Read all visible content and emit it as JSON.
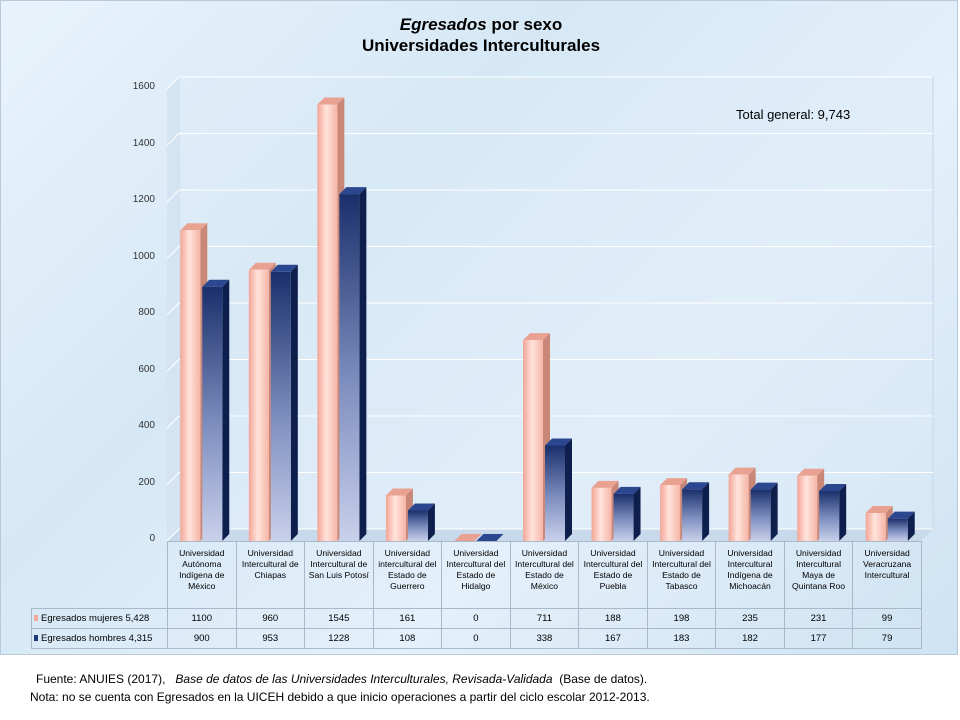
{
  "title": {
    "italic": "Egresados",
    "rest": "por sexo",
    "line2": "Universidades Interculturales"
  },
  "total_label": "Total general: 9,743",
  "footer": {
    "source_prefix": "Fuente: ANUIES (2017),",
    "source_title": "Base de datos de las Universidades Interculturales, Revisada-Validada",
    "source_suffix": "(Base de datos).",
    "note": "Nota: no se cuenta con Egresados en la UICEH debido a que inicio operaciones  a partir del ciclo escolar 2012-2013."
  },
  "colors": {
    "mujeres": "#f2a89a",
    "hombres": "#1f3a7a",
    "grid": "#ffffff"
  },
  "chart_data": {
    "type": "bar",
    "categories": [
      "Universidad Autónoma Indígena de México",
      "Universidad Intercultural de Chiapas",
      "Universidad Intercultural de San Luis Potosí",
      "Universidad intercultural del Estado de Guerrero",
      "Universidad Intercultural del Estado de Hidalgo",
      "Universidad Intercultural del Estado de México",
      "Universidad Intercultural del Estado de Puebla",
      "Universidad Intercultural del Estado de Tabasco",
      "Universidad Intercultural Indígena de Michoacán",
      "Universidad Intercultural Maya de Quintana Roo",
      "Universidad Veracruzana Intercultural"
    ],
    "series": [
      {
        "name": "Egresados mujeres 5,428",
        "values": [
          1100,
          960,
          1545,
          161,
          0,
          711,
          188,
          198,
          235,
          231,
          99
        ]
      },
      {
        "name": "Egresados hombres 4,315",
        "values": [
          900,
          953,
          1228,
          108,
          0,
          338,
          167,
          183,
          182,
          177,
          79
        ]
      }
    ],
    "ylim": [
      0,
      1600
    ],
    "yticks": [
      0,
      200,
      400,
      600,
      800,
      1000,
      1200,
      1400,
      1600
    ],
    "grid": true,
    "legend": "table"
  }
}
